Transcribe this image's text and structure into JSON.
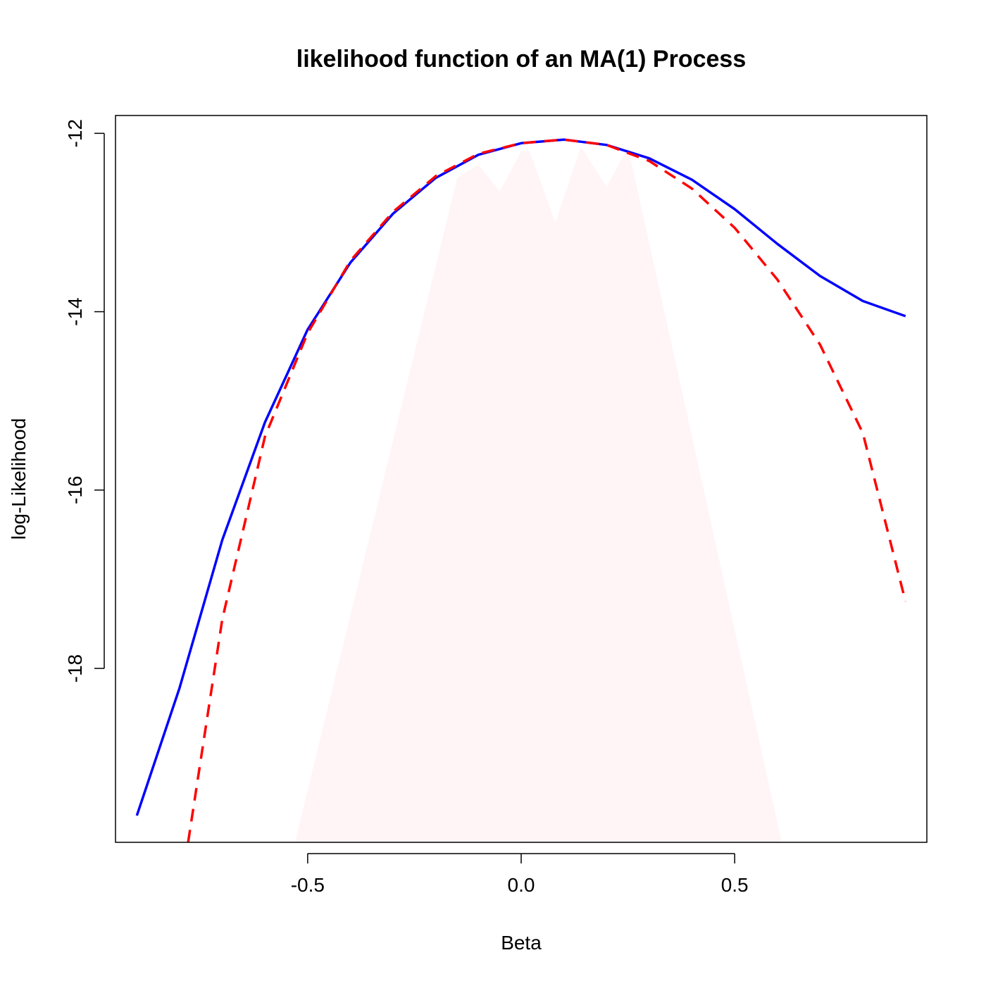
{
  "chart_data": {
    "type": "line",
    "title": "likelihood function of an MA(1) Process",
    "xlabel": "Beta",
    "ylabel": "log-Likelihood",
    "xlim": [
      -0.95,
      0.95
    ],
    "ylim": [
      -19.95,
      -11.8
    ],
    "xticks": [
      -0.5,
      0.0,
      0.5
    ],
    "xtick_labels": [
      "-0.5",
      "0.0",
      "0.5"
    ],
    "yticks": [
      -18,
      -16,
      -14,
      -12
    ],
    "ytick_labels": [
      "-18",
      "-16",
      "-14",
      "-12"
    ],
    "grid": false,
    "legend": "none",
    "series": [
      {
        "color": "#0000ff",
        "style": "solid",
        "x": [
          -0.9,
          -0.8,
          -0.7,
          -0.6,
          -0.5,
          -0.4,
          -0.3,
          -0.2,
          -0.1,
          0.0,
          0.1,
          0.2,
          0.3,
          0.4,
          0.5,
          0.6,
          0.7,
          0.8,
          0.9
        ],
        "y": [
          -19.65,
          -18.22,
          -16.56,
          -15.24,
          -14.2,
          -13.45,
          -12.9,
          -12.5,
          -12.24,
          -12.11,
          -12.07,
          -12.13,
          -12.28,
          -12.52,
          -12.85,
          -13.24,
          -13.6,
          -13.88,
          -14.05
        ]
      },
      {
        "color": "#ff0000",
        "style": "dashed",
        "x": [
          -0.78,
          -0.7,
          -0.6,
          -0.5,
          -0.4,
          -0.3,
          -0.2,
          -0.1,
          0.0,
          0.1,
          0.2,
          0.3,
          0.4,
          0.5,
          0.6,
          0.7,
          0.8,
          0.9
        ],
        "y": [
          -19.95,
          -17.45,
          -15.4,
          -14.24,
          -13.43,
          -12.88,
          -12.48,
          -12.23,
          -12.11,
          -12.07,
          -12.13,
          -12.31,
          -12.62,
          -13.06,
          -13.64,
          -14.37,
          -15.36,
          -17.25
        ]
      }
    ],
    "shaded_region": {
      "color": "#fff5f7",
      "x": [
        -0.53,
        -0.15,
        -0.1,
        -0.05,
        0.0,
        0.02,
        0.08,
        0.14,
        0.2,
        0.25,
        0.61
      ],
      "y": [
        -19.95,
        -12.5,
        -12.35,
        -12.65,
        -12.2,
        -12.2,
        -13.0,
        -12.15,
        -12.6,
        -12.15,
        -19.95
      ]
    }
  }
}
